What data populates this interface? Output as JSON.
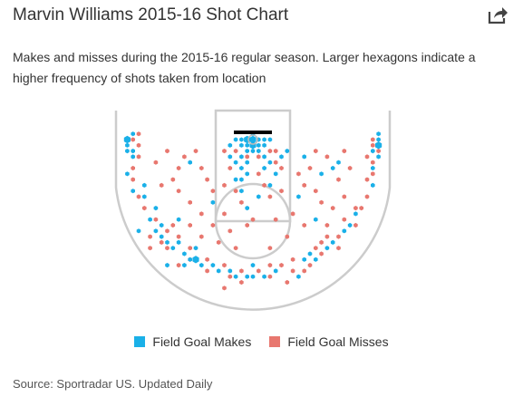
{
  "header": {
    "title": "Marvin Williams 2015-16 Shot Chart",
    "subtitle": "Makes and misses during the 2015-16 regular season. Larger hexagons indicate a higher frequency of shots taken from location",
    "share_icon": "share-icon"
  },
  "colors": {
    "made": "#1ab0e8",
    "missed": "#e8776f",
    "court_lines": "#cccccc",
    "backboard": "#000000"
  },
  "legend": {
    "made_label": "Field Goal Makes",
    "missed_label": "Field Goal Misses"
  },
  "footer": {
    "source": "Source: Sportradar US. Updated Daily"
  },
  "chart_data": {
    "type": "scatter",
    "title": "Marvin Williams 2015-16 Shot Chart",
    "units": "feet from basket (x: sideline-to-sideline offset, y: toward half court)",
    "xlim": [
      -25,
      25
    ],
    "ylim": [
      -4,
      25
    ],
    "grid": false,
    "legend_position": "bottom",
    "series": [
      {
        "name": "Field Goal Makes",
        "points": [
          [
            -1,
            0,
            2
          ],
          [
            0,
            0,
            2
          ],
          [
            1,
            0,
            1
          ],
          [
            0,
            1,
            2
          ],
          [
            -1,
            1,
            1
          ],
          [
            1,
            1,
            1
          ],
          [
            2,
            0,
            1
          ],
          [
            -2,
            0,
            1
          ],
          [
            0,
            -1,
            1
          ],
          [
            2,
            1,
            1
          ],
          [
            -2,
            1,
            1
          ],
          [
            0,
            2,
            1
          ],
          [
            -1,
            2,
            1
          ],
          [
            1,
            2,
            1
          ],
          [
            3,
            0,
            1
          ],
          [
            -3,
            0,
            1
          ],
          [
            -3,
            4,
            1
          ],
          [
            -2,
            3,
            1
          ],
          [
            -2,
            5,
            1
          ],
          [
            -1,
            6,
            1
          ],
          [
            2,
            5,
            1
          ],
          [
            3,
            4,
            1
          ],
          [
            -4,
            3,
            1
          ],
          [
            -4,
            1,
            1
          ],
          [
            4,
            6,
            1
          ],
          [
            3,
            8,
            1
          ],
          [
            -3,
            7,
            1
          ],
          [
            -2,
            9,
            1
          ],
          [
            1,
            10,
            1
          ],
          [
            -2,
            7,
            1
          ],
          [
            -1,
            4,
            1
          ],
          [
            2,
            3,
            1
          ],
          [
            -1,
            12,
            1
          ],
          [
            5,
            3,
            1
          ],
          [
            6,
            2,
            1
          ],
          [
            -22,
            0,
            2
          ],
          [
            -22,
            1,
            1
          ],
          [
            -22,
            2,
            1
          ],
          [
            -21,
            2,
            1
          ],
          [
            -21,
            3,
            1
          ],
          [
            -21,
            -1,
            1
          ],
          [
            -22,
            6,
            1
          ],
          [
            -21,
            9,
            1
          ],
          [
            22,
            1,
            2
          ],
          [
            22,
            0,
            1
          ],
          [
            21,
            2,
            1
          ],
          [
            22,
            3,
            1
          ],
          [
            22,
            -1,
            1
          ],
          [
            21,
            5,
            1
          ],
          [
            21,
            8,
            1
          ],
          [
            -18,
            14,
            1
          ],
          [
            -17,
            16,
            1
          ],
          [
            -16,
            17,
            1
          ],
          [
            -15,
            18,
            1
          ],
          [
            -14,
            19,
            1
          ],
          [
            -12,
            20,
            1
          ],
          [
            -10,
            21,
            2
          ],
          [
            -9,
            22,
            1
          ],
          [
            -7,
            22,
            1
          ],
          [
            -6,
            23,
            1
          ],
          [
            -4,
            23,
            1
          ],
          [
            -3,
            24,
            1
          ],
          [
            -1,
            24,
            1
          ],
          [
            0,
            24,
            1
          ],
          [
            2,
            24,
            1
          ],
          [
            4,
            23,
            1
          ],
          [
            9,
            21,
            1
          ],
          [
            10,
            20,
            1
          ],
          [
            13,
            19,
            1
          ],
          [
            14,
            18,
            1
          ],
          [
            16,
            16,
            1
          ],
          [
            17,
            15,
            1
          ],
          [
            -16,
            15,
            1
          ],
          [
            -17,
            12,
            1
          ],
          [
            -13,
            18,
            1
          ],
          [
            -10,
            19,
            1
          ],
          [
            18,
            13,
            1
          ],
          [
            -19,
            10,
            1
          ],
          [
            -19,
            8,
            1
          ],
          [
            -13,
            14,
            1
          ],
          [
            11,
            14,
            1
          ],
          [
            -7,
            11,
            1
          ],
          [
            8,
            10,
            1
          ],
          [
            9,
            3,
            1
          ],
          [
            -11,
            4,
            1
          ],
          [
            12,
            6,
            1
          ],
          [
            14,
            5,
            1
          ],
          [
            15,
            4,
            1
          ],
          [
            -20,
            16,
            1
          ],
          [
            -15,
            22,
            1
          ],
          [
            0,
            22,
            1
          ],
          [
            -11,
            21,
            1
          ],
          [
            -12,
            22,
            1
          ],
          [
            8,
            24,
            1
          ],
          [
            11,
            21,
            1
          ]
        ]
      },
      {
        "name": "Field Goal Misses",
        "points": [
          [
            -1,
            3,
            1
          ],
          [
            1,
            3,
            1
          ],
          [
            3,
            2,
            1
          ],
          [
            -3,
            2,
            1
          ],
          [
            4,
            2,
            1
          ],
          [
            -4,
            5,
            1
          ],
          [
            4,
            4,
            1
          ],
          [
            -5,
            2,
            1
          ],
          [
            5,
            5,
            1
          ],
          [
            -3,
            9,
            1
          ],
          [
            2,
            8,
            1
          ],
          [
            -2,
            11,
            1
          ],
          [
            1,
            6,
            1
          ],
          [
            3,
            10,
            1
          ],
          [
            -5,
            8,
            1
          ],
          [
            5,
            9,
            1
          ],
          [
            -1,
            15,
            1
          ],
          [
            0,
            14,
            1
          ],
          [
            -4,
            16,
            1
          ],
          [
            4,
            14,
            1
          ],
          [
            -21,
            0,
            1
          ],
          [
            -20,
            1,
            1
          ],
          [
            -20,
            -1,
            1
          ],
          [
            -21,
            5,
            1
          ],
          [
            -20,
            3,
            1
          ],
          [
            -21,
            7,
            1
          ],
          [
            -20,
            10,
            1
          ],
          [
            -19,
            12,
            1
          ],
          [
            22,
            2,
            1
          ],
          [
            21,
            1,
            1
          ],
          [
            21,
            0,
            1
          ],
          [
            21,
            4,
            1
          ],
          [
            20,
            3,
            1
          ],
          [
            20,
            7,
            1
          ],
          [
            21,
            6,
            1
          ],
          [
            20,
            10,
            1
          ],
          [
            19,
            12,
            1
          ],
          [
            -17,
            14,
            1
          ],
          [
            -16,
            18,
            1
          ],
          [
            -15,
            16,
            1
          ],
          [
            -13,
            17,
            1
          ],
          [
            -11,
            19,
            1
          ],
          [
            -11,
            21,
            1
          ],
          [
            -8,
            21,
            1
          ],
          [
            -8,
            23,
            1
          ],
          [
            -5,
            22,
            1
          ],
          [
            -4,
            24,
            1
          ],
          [
            -2,
            23,
            1
          ],
          [
            -2,
            25,
            1
          ],
          [
            1,
            23,
            1
          ],
          [
            3,
            24,
            1
          ],
          [
            3,
            22,
            1
          ],
          [
            5,
            22,
            1
          ],
          [
            7,
            21,
            1
          ],
          [
            7,
            23,
            1
          ],
          [
            9,
            23,
            1
          ],
          [
            11,
            19,
            1
          ],
          [
            12,
            18,
            1
          ],
          [
            13,
            17,
            1
          ],
          [
            15,
            17,
            1
          ],
          [
            16,
            14,
            1
          ],
          [
            18,
            12,
            1
          ],
          [
            18,
            15,
            1
          ],
          [
            -18,
            17,
            1
          ],
          [
            -14,
            15,
            1
          ],
          [
            -15,
            19,
            1
          ],
          [
            12,
            20,
            1
          ],
          [
            10,
            22,
            1
          ],
          [
            -16,
            8,
            1
          ],
          [
            -14,
            7,
            1
          ],
          [
            -13,
            9,
            1
          ],
          [
            -11,
            11,
            1
          ],
          [
            -9,
            13,
            1
          ],
          [
            -9,
            5,
            1
          ],
          [
            -8,
            7,
            1
          ],
          [
            -7,
            9,
            1
          ],
          [
            -12,
            3,
            1
          ],
          [
            -15,
            2,
            1
          ],
          [
            -13,
            5,
            1
          ],
          [
            -10,
            2,
            1
          ],
          [
            -17,
            4,
            1
          ],
          [
            8,
            6,
            1
          ],
          [
            9,
            8,
            1
          ],
          [
            11,
            9,
            1
          ],
          [
            12,
            11,
            1
          ],
          [
            14,
            12,
            1
          ],
          [
            16,
            10,
            1
          ],
          [
            13,
            3,
            1
          ],
          [
            11,
            2,
            1
          ],
          [
            10,
            5,
            1
          ],
          [
            15,
            7,
            1
          ],
          [
            17,
            5,
            1
          ],
          [
            16,
            2,
            1
          ],
          [
            7,
            13,
            1
          ],
          [
            9,
            15,
            1
          ],
          [
            -7,
            15,
            1
          ],
          [
            -9,
            17,
            1
          ],
          [
            -5,
            13,
            1
          ],
          [
            6,
            17,
            1
          ],
          [
            -6,
            18,
            1
          ],
          [
            -3,
            19,
            1
          ],
          [
            3,
            19,
            1
          ],
          [
            -11,
            15,
            1
          ],
          [
            13,
            15,
            1
          ],
          [
            -18,
            19,
            1
          ],
          [
            15,
            19,
            1
          ],
          [
            -13,
            22,
            1
          ],
          [
            -5,
            26,
            1
          ],
          [
            6,
            25,
            1
          ]
        ]
      }
    ]
  }
}
